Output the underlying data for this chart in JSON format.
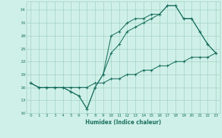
{
  "xlabel": "Humidex (Indice chaleur)",
  "bg_color": "#cff0e8",
  "grid_color": "#a0cfc0",
  "line_color": "#1a7060",
  "line1_x": [
    0,
    1,
    2,
    3,
    4,
    5,
    6,
    7,
    8,
    9,
    10,
    11,
    12,
    13,
    14,
    15,
    16,
    17,
    18,
    19,
    20,
    21,
    22,
    23
  ],
  "line1_y": [
    17,
    16,
    16,
    16,
    16,
    15,
    14,
    11,
    16,
    19,
    28,
    29,
    31,
    32,
    32,
    33,
    33,
    35,
    35,
    32,
    32,
    29,
    26,
    24
  ],
  "line2_x": [
    0,
    1,
    2,
    3,
    4,
    5,
    6,
    7,
    8,
    9,
    10,
    11,
    12,
    13,
    14,
    15,
    16,
    17,
    18,
    19,
    20,
    21,
    22,
    23
  ],
  "line2_y": [
    17,
    16,
    16,
    16,
    16,
    15,
    14,
    11,
    16,
    19,
    24,
    26,
    29,
    30,
    31,
    32,
    33,
    35,
    35,
    32,
    32,
    29,
    26,
    24
  ],
  "line3_x": [
    0,
    1,
    2,
    3,
    4,
    5,
    6,
    7,
    8,
    9,
    10,
    11,
    12,
    13,
    14,
    15,
    16,
    17,
    18,
    19,
    20,
    21,
    22,
    23
  ],
  "line3_y": [
    17,
    16,
    16,
    16,
    16,
    16,
    16,
    16,
    17,
    17,
    18,
    18,
    19,
    19,
    20,
    20,
    21,
    21,
    22,
    22,
    23,
    23,
    23,
    24
  ],
  "xlim": [
    -0.5,
    23.5
  ],
  "ylim": [
    10,
    36
  ],
  "yticks": [
    10,
    13,
    16,
    19,
    22,
    25,
    28,
    31,
    34
  ],
  "xticks": [
    0,
    1,
    2,
    3,
    4,
    5,
    6,
    7,
    8,
    9,
    10,
    11,
    12,
    13,
    14,
    15,
    16,
    17,
    18,
    19,
    20,
    21,
    22,
    23
  ],
  "marker": "+"
}
